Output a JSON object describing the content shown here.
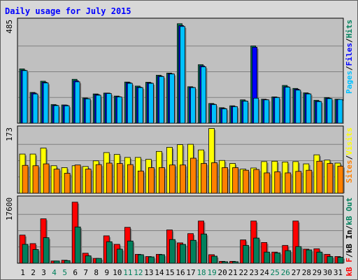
{
  "chart_data": {
    "type": "bar",
    "title": "Daily usage for July 2015",
    "categories": [
      "1",
      "2",
      "3",
      "4",
      "5",
      "6",
      "7",
      "8",
      "9",
      "10",
      "11",
      "12",
      "13",
      "14",
      "15",
      "16",
      "17",
      "18",
      "19",
      "20",
      "21",
      "22",
      "23",
      "24",
      "25",
      "26",
      "27",
      "28",
      "29",
      "30",
      "31"
    ],
    "weekend_days": [
      "4",
      "5",
      "11",
      "12",
      "18",
      "19",
      "25",
      "26"
    ],
    "panels": [
      {
        "id": "hits-files-pages",
        "max_label": "485",
        "ylim": [
          0,
          485
        ],
        "legend": [
          "Pages",
          "/",
          "Files",
          "/",
          "Hits"
        ],
        "series": [
          {
            "name": "Hits",
            "color": "#00805c",
            "values": [
              256,
              145,
              198,
              88,
              86,
              207,
              119,
              138,
              142,
              128,
              194,
              175,
              193,
              226,
              236,
              469,
              172,
              276,
              93,
              73,
              82,
              110,
              364,
              113,
              124,
              178,
              164,
              143,
              108,
              121,
              113
            ]
          },
          {
            "name": "Files",
            "color": "#0000ff",
            "values": [
              250,
              142,
              193,
              85,
              85,
              200,
              116,
              135,
              142,
              125,
              191,
              170,
              190,
              222,
              233,
              460,
              169,
              270,
              90,
              70,
              79,
              105,
              358,
              111,
              122,
              172,
              160,
              140,
              104,
              118,
              110
            ]
          },
          {
            "name": "Pages",
            "color": "#00c0ff",
            "values": [
              248,
              138,
              190,
              83,
              82,
              195,
              115,
              132,
              140,
              124,
              188,
              168,
              188,
              220,
              232,
              456,
              168,
              266,
              88,
              68,
              78,
              104,
              118,
              110,
              121,
              170,
              156,
              138,
              102,
              116,
              112
            ]
          }
        ]
      },
      {
        "id": "visits-sites",
        "max_label": "173",
        "ylim": [
          0,
          173
        ],
        "legend": [
          "Sites",
          "/",
          "Visits"
        ],
        "series": [
          {
            "name": "Visits",
            "color": "#ffff00",
            "values": [
              104,
              104,
              120,
              73,
              68,
              73,
              71,
              86,
              108,
              103,
              95,
              95,
              90,
              111,
              122,
              129,
              130,
              115,
              172,
              87,
              79,
              64,
              67,
              84,
              85,
              83,
              84,
              78,
              102,
              88,
              80
            ]
          },
          {
            "name": "Sites",
            "color": "#ff8000",
            "values": [
              74,
              73,
              78,
              64,
              53,
              75,
              64,
              76,
              80,
              79,
              76,
              59,
              68,
              68,
              75,
              75,
              93,
              79,
              81,
              68,
              68,
              61,
              63,
              54,
              57,
              54,
              58,
              61,
              85,
              79,
              72
            ]
          }
        ]
      },
      {
        "id": "kbin-kbout-kbf",
        "max_label": "17600",
        "ylim": [
          0,
          17600
        ],
        "legend": [
          "kB F",
          "/",
          "kB In",
          "/",
          "kB Out"
        ],
        "series": [
          {
            "name": "kB F",
            "color": "#ff0000",
            "values": [
              7600,
              5300,
              12000,
              600,
              800,
              16500,
              2700,
              1300,
              7400,
              5100,
              9700,
              2400,
              1800,
              2400,
              9000,
              5500,
              8000,
              11400,
              2300,
              500,
              500,
              6300,
              11400,
              5600,
              3000,
              4800,
              11400,
              3800,
              3900,
              2400,
              1800
            ]
          },
          {
            "name": "kB Out",
            "color": "#00805c",
            "values": [
              5100,
              3700,
              6900,
              600,
              700,
              9800,
              2000,
              1300,
              5800,
              3800,
              6000,
              2300,
              1700,
              2300,
              6400,
              5100,
              6200,
              7900,
              1900,
              400,
              400,
              4800,
              6800,
              3000,
              2800,
              3400,
              4500,
              3600,
              3000,
              1800,
              1600
            ]
          }
        ]
      }
    ]
  }
}
